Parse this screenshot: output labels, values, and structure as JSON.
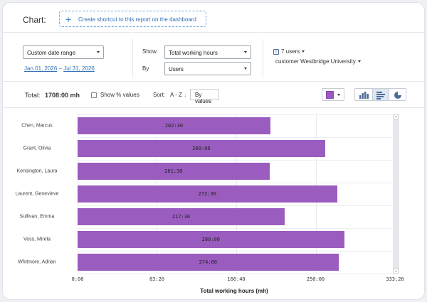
{
  "header": {
    "title": "Chart:",
    "shortcut_label": "Create shortcut to this report on the dashboard"
  },
  "filters": {
    "date_range_select": "Custom date range",
    "date_from": "Jan 01, 2026",
    "date_sep": "–",
    "date_to": "Jul 31, 2026",
    "show_label": "Show",
    "show_value": "Total working hours",
    "by_label": "By",
    "by_value": "Users",
    "users_filter": "7 users",
    "customer_filter": "customer Westbridge University"
  },
  "toolbar": {
    "total_label": "Total:",
    "total_value": "1708:00 mh",
    "show_percent_label": "Show % values",
    "sort_label": "Sort:",
    "sort_value": "A - Z",
    "by_values_label": "By values"
  },
  "colors": {
    "bar": "#9a5cbf",
    "accent": "#2f6fb6"
  },
  "chart_data": {
    "type": "bar",
    "orientation": "horizontal",
    "categories": [
      "Chen, Marcus",
      "Grant, Olivia",
      "Kensington, Laura",
      "Laurent, Genevieve",
      "Sullivan, Emma",
      "Voss, Mirela",
      "Whitmore, Adrian"
    ],
    "values": [
      202.5,
      260,
      201.5,
      272.5,
      217.5,
      280,
      274
    ],
    "value_labels": [
      "202:30",
      "260:00",
      "201:30",
      "272:30",
      "217:30",
      "280:00",
      "274:00"
    ],
    "xlabel": "Total working hours (mh)",
    "xlim": [
      0,
      333.333
    ],
    "xticks": [
      0,
      83.333,
      166.667,
      250,
      333.333
    ],
    "xtick_labels": [
      "0:00",
      "83:20",
      "166:40",
      "250:00",
      "333:20"
    ],
    "grid": true
  }
}
